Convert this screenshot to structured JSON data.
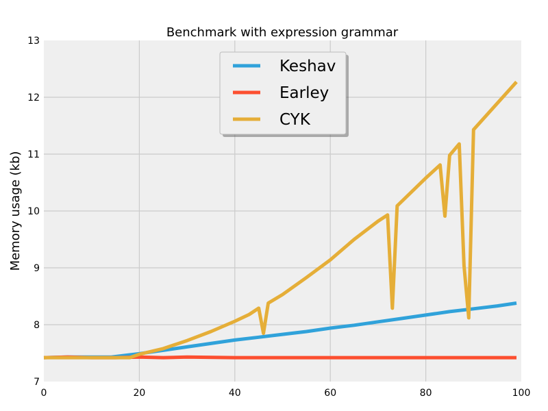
{
  "chart_data": {
    "type": "line",
    "title": "Benchmark with expression grammar",
    "xlabel": "",
    "ylabel": "Memory usage (kb)",
    "xlim": [
      0,
      100
    ],
    "ylim": [
      7,
      13
    ],
    "xticks": [
      0,
      20,
      40,
      60,
      80,
      100
    ],
    "yticks": [
      7,
      8,
      9,
      10,
      11,
      12,
      13
    ],
    "grid": true,
    "legend_position": "top-center",
    "background_color": "#efefef",
    "grid_color": "#cbcbcb",
    "series": [
      {
        "name": "Keshav",
        "color": "#30a2da",
        "x": [
          0,
          5,
          10,
          14,
          18,
          20,
          25,
          30,
          35,
          40,
          45,
          50,
          55,
          60,
          65,
          70,
          75,
          80,
          85,
          90,
          95,
          99
        ],
        "y": [
          7.42,
          7.43,
          7.43,
          7.43,
          7.47,
          7.49,
          7.55,
          7.61,
          7.67,
          7.73,
          7.78,
          7.83,
          7.88,
          7.94,
          7.99,
          8.05,
          8.11,
          8.17,
          8.23,
          8.28,
          8.33,
          8.38
        ]
      },
      {
        "name": "Earley",
        "color": "#fc4f30",
        "x": [
          0,
          5,
          10,
          15,
          20,
          25,
          30,
          40,
          50,
          60,
          70,
          80,
          90,
          99
        ],
        "y": [
          7.42,
          7.43,
          7.42,
          7.42,
          7.43,
          7.42,
          7.43,
          7.42,
          7.42,
          7.42,
          7.42,
          7.42,
          7.42,
          7.42
        ]
      },
      {
        "name": "CYK",
        "color": "#e5ae38",
        "x": [
          0,
          18,
          20,
          25,
          30,
          35,
          40,
          43,
          45,
          46,
          47,
          50,
          55,
          60,
          65,
          70,
          72,
          73,
          74,
          80,
          83,
          84,
          85,
          87,
          88,
          89,
          90,
          99
        ],
        "y": [
          7.42,
          7.42,
          7.48,
          7.58,
          7.72,
          7.88,
          8.06,
          8.18,
          8.29,
          7.85,
          8.38,
          8.53,
          8.83,
          9.14,
          9.5,
          9.82,
          9.93,
          8.29,
          10.09,
          10.58,
          10.81,
          9.91,
          10.98,
          11.18,
          9.04,
          8.12,
          11.43,
          12.27
        ]
      }
    ]
  }
}
